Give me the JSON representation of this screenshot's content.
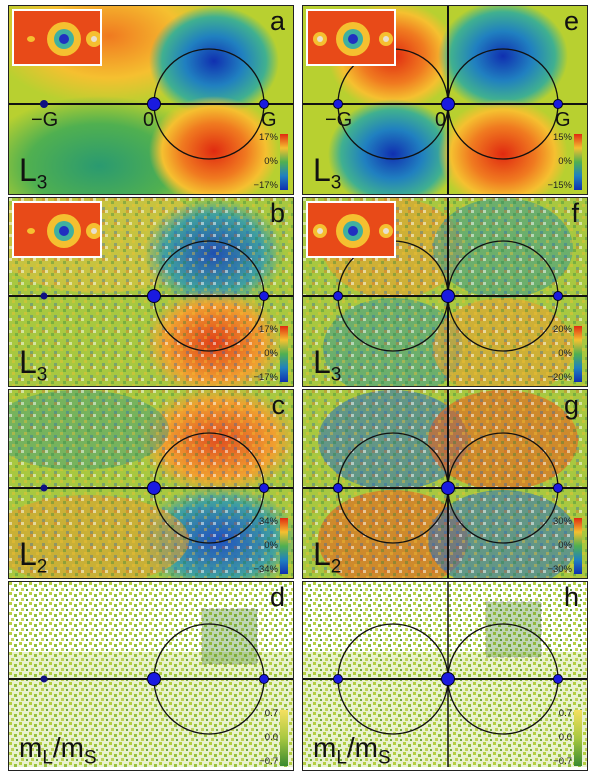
{
  "panels": {
    "a": {
      "letter": "a",
      "label": "L",
      "label_sub": "3",
      "cb_top": "17%",
      "cb_mid": "0%",
      "cb_bot": "−17%"
    },
    "b": {
      "letter": "b",
      "label": "L",
      "label_sub": "3",
      "cb_top": "17%",
      "cb_mid": "0%",
      "cb_bot": "−17%"
    },
    "c": {
      "letter": "c",
      "label": "L",
      "label_sub": "2",
      "cb_top": "34%",
      "cb_mid": "0%",
      "cb_bot": "−34%"
    },
    "d": {
      "letter": "d",
      "label": "m",
      "label_sub": "L",
      "label2": "/m",
      "label2_sub": "S",
      "cb_top": "0.7",
      "cb_mid": "0.0",
      "cb_bot": "−0.7"
    },
    "e": {
      "letter": "e",
      "label": "L",
      "label_sub": "3",
      "cb_top": "15%",
      "cb_mid": "0%",
      "cb_bot": "−15%"
    },
    "f": {
      "letter": "f",
      "label": "L",
      "label_sub": "3",
      "cb_top": "20%",
      "cb_mid": "0%",
      "cb_bot": "−20%"
    },
    "g": {
      "letter": "g",
      "label": "L",
      "label_sub": "2",
      "cb_top": "30%",
      "cb_mid": "0%",
      "cb_bot": "−30%"
    },
    "h": {
      "letter": "h",
      "label": "m",
      "label_sub": "L",
      "label2": "/m",
      "label2_sub": "S",
      "cb_top": "0.7",
      "cb_mid": "0.0",
      "cb_bot": "−0.7"
    }
  },
  "axis_ticks": {
    "neg_g": "−G",
    "zero": "0",
    "g": "G"
  }
}
